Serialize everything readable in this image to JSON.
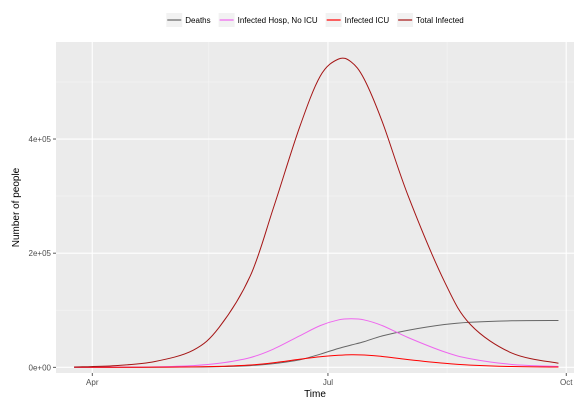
{
  "chart_data": {
    "type": "line",
    "title": "",
    "xlabel": "Time",
    "ylabel": "Number of people",
    "x_ticks": [
      "Apr",
      "Jul",
      "Oct"
    ],
    "y_ticks": [
      "0e+00",
      "2e+05",
      "4e+05"
    ],
    "y_tick_values": [
      0,
      200000,
      400000
    ],
    "ylim": [
      -10000,
      570000
    ],
    "xlim": [
      "2020-03-18",
      "2020-10-04"
    ],
    "legend": "top",
    "grid": true,
    "x": [
      "2020-03-25",
      "2020-04-10",
      "2020-04-25",
      "2020-05-10",
      "2020-05-20",
      "2020-06-01",
      "2020-06-10",
      "2020-06-20",
      "2020-06-28",
      "2020-07-05",
      "2020-07-10",
      "2020-07-15",
      "2020-07-22",
      "2020-08-01",
      "2020-08-15",
      "2020-08-25",
      "2020-09-10",
      "2020-09-28"
    ],
    "series": [
      {
        "name": "Deaths",
        "color": "#666666",
        "values": [
          0,
          50,
          150,
          500,
          1200,
          3000,
          6500,
          13000,
          23000,
          33000,
          39000,
          45000,
          55000,
          65000,
          75000,
          79000,
          81500,
          82000
        ]
      },
      {
        "name": "Infected Hosp, No ICU",
        "color": "#ee66ee",
        "values": [
          0,
          200,
          800,
          3000,
          7000,
          17000,
          32000,
          55000,
          73000,
          83000,
          85000,
          83000,
          73000,
          52000,
          27000,
          15000,
          5000,
          1500
        ]
      },
      {
        "name": "Infected ICU",
        "color": "#ff0000",
        "values": [
          0,
          50,
          200,
          700,
          1600,
          4000,
          8000,
          14000,
          18500,
          21000,
          22000,
          21500,
          19000,
          13500,
          7000,
          3800,
          1300,
          400
        ]
      },
      {
        "name": "Total Infected",
        "color": "#a51515",
        "values": [
          500,
          3000,
          10000,
          30000,
          70000,
          160000,
          280000,
          420000,
          510000,
          540000,
          535000,
          505000,
          430000,
          300000,
          150000,
          75000,
          25000,
          7000
        ]
      }
    ]
  }
}
